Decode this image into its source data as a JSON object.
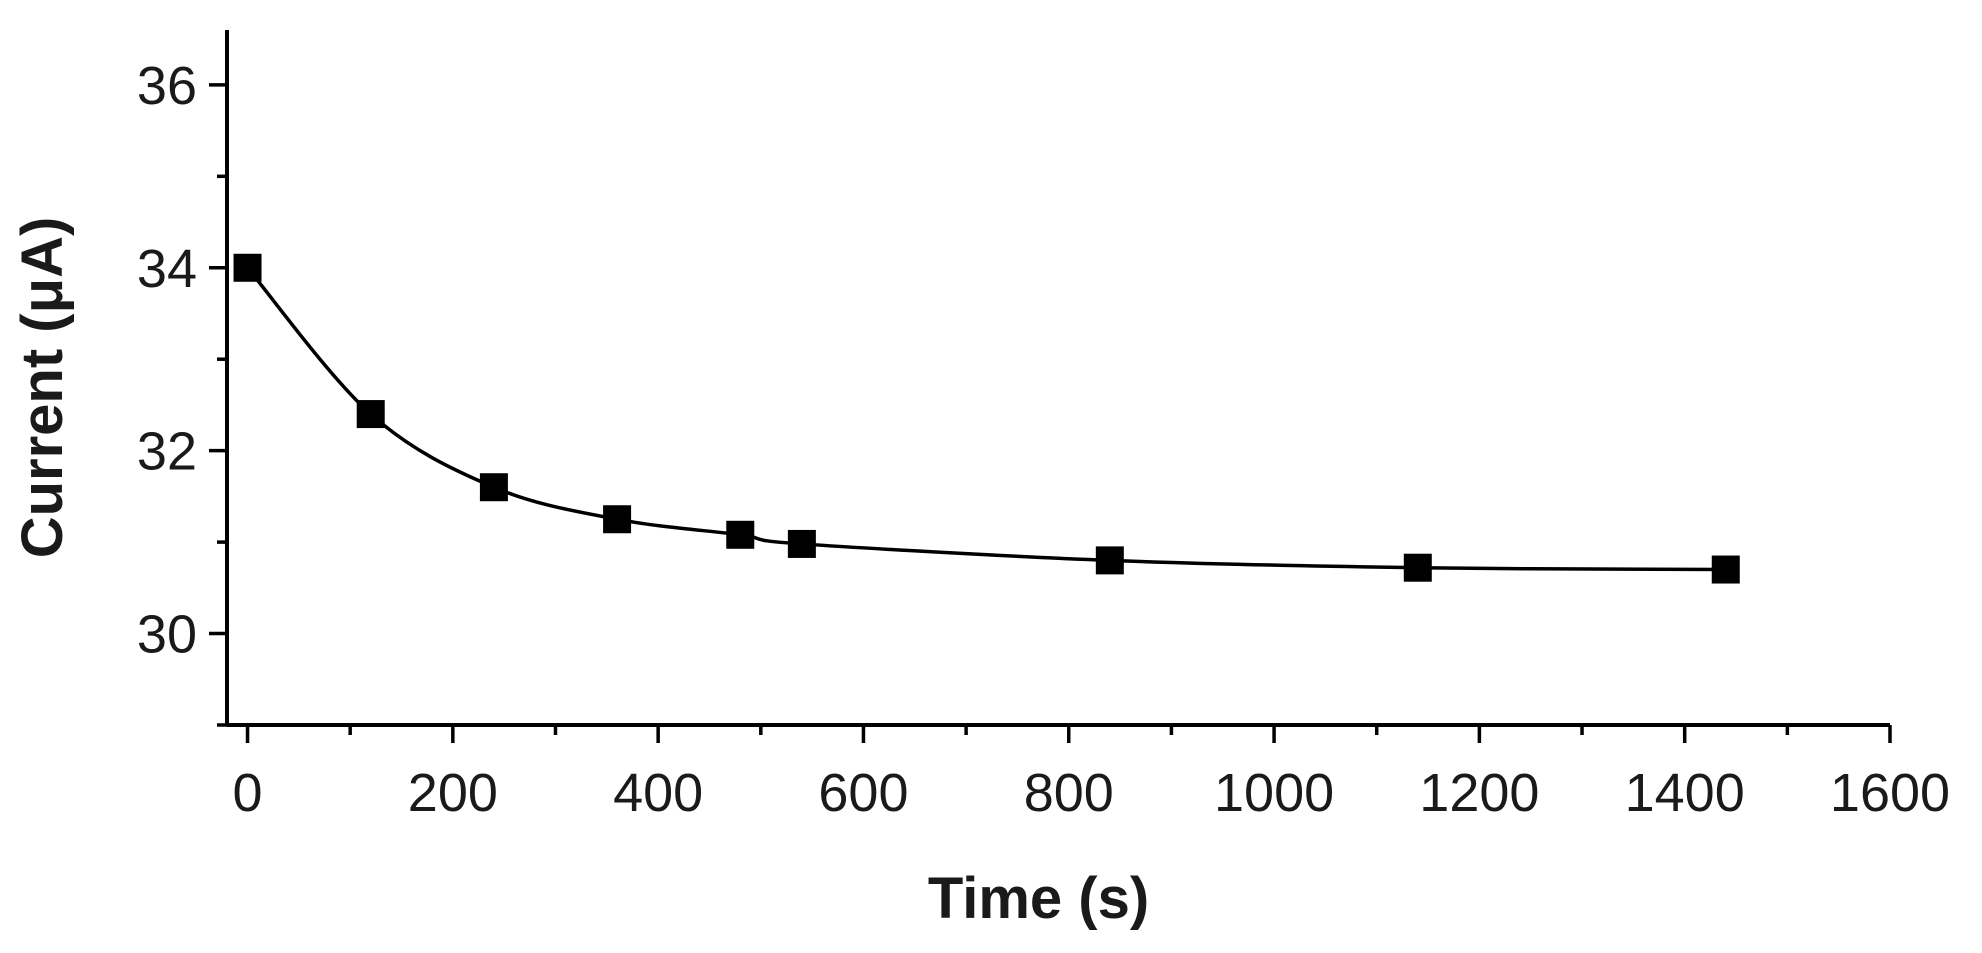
{
  "chart_data": {
    "type": "line",
    "title": "",
    "xlabel": "Time (s)",
    "ylabel": "Current (μA)",
    "xlim": [
      -20,
      1600
    ],
    "ylim": [
      29,
      36.6
    ],
    "xticks": [
      0,
      200,
      400,
      600,
      800,
      1000,
      1200,
      1400,
      1600
    ],
    "yticks": [
      30,
      32,
      34,
      36
    ],
    "xtick_labels": [
      "0",
      "200",
      "400",
      "600",
      "800",
      "1000",
      "1200",
      "1400",
      "1600"
    ],
    "ytick_labels": [
      "30",
      "32",
      "34",
      "36"
    ],
    "grid": false,
    "series": [
      {
        "marker": "square",
        "color": "#000000",
        "x": [
          0,
          120,
          240,
          360,
          480,
          540,
          840,
          1140,
          1440
        ],
        "y": [
          34.0,
          32.4,
          31.6,
          31.25,
          31.08,
          30.98,
          30.8,
          30.72,
          30.7
        ]
      }
    ]
  }
}
